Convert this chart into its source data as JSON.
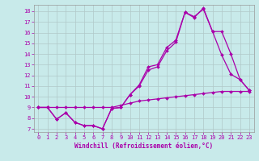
{
  "xlabel": "Windchill (Refroidissement éolien,°C)",
  "background_color": "#c8eaea",
  "line_color": "#aa00aa",
  "xlim": [
    -0.5,
    23.5
  ],
  "ylim": [
    6.7,
    18.6
  ],
  "xticks": [
    0,
    1,
    2,
    3,
    4,
    5,
    6,
    7,
    8,
    9,
    10,
    11,
    12,
    13,
    14,
    15,
    16,
    17,
    18,
    19,
    20,
    21,
    22,
    23
  ],
  "yticks": [
    7,
    8,
    9,
    10,
    11,
    12,
    13,
    14,
    15,
    16,
    17,
    18
  ],
  "line1_x": [
    0,
    1,
    2,
    3,
    4,
    5,
    6,
    7,
    8,
    9,
    10,
    11,
    12,
    13,
    14,
    15,
    16,
    17,
    18,
    19,
    20,
    21,
    22,
    23
  ],
  "line1_y": [
    9.0,
    9.0,
    9.0,
    9.0,
    9.0,
    9.0,
    9.0,
    9.0,
    9.0,
    9.2,
    9.4,
    9.6,
    9.7,
    9.8,
    9.9,
    10.0,
    10.1,
    10.2,
    10.3,
    10.4,
    10.5,
    10.5,
    10.5,
    10.5
  ],
  "line2_x": [
    0,
    1,
    2,
    3,
    4,
    5,
    6,
    7,
    8,
    9,
    10,
    11,
    12,
    13,
    14,
    15,
    16,
    17,
    18,
    19,
    20,
    21,
    22,
    23
  ],
  "line2_y": [
    9.0,
    9.0,
    7.9,
    8.5,
    7.6,
    7.3,
    7.3,
    7.0,
    8.9,
    9.0,
    10.2,
    11.1,
    12.8,
    13.0,
    14.6,
    15.3,
    17.9,
    17.5,
    18.2,
    16.1,
    13.9,
    12.1,
    11.6,
    10.6
  ],
  "line3_x": [
    0,
    1,
    2,
    3,
    4,
    5,
    6,
    7,
    8,
    9,
    10,
    11,
    12,
    13,
    14,
    15,
    16,
    17,
    18,
    19,
    20,
    21,
    22,
    23
  ],
  "line3_y": [
    9.0,
    9.0,
    7.9,
    8.5,
    7.6,
    7.3,
    7.3,
    7.0,
    8.9,
    9.0,
    10.2,
    11.0,
    12.5,
    12.8,
    14.3,
    15.1,
    17.9,
    17.4,
    18.3,
    16.1,
    16.1,
    14.0,
    11.6,
    10.6
  ],
  "grid_color": "#b0c8c8",
  "marker": "D",
  "markersize": 2,
  "linewidth": 0.9,
  "tick_fontsize": 5.0,
  "xlabel_fontsize": 5.5
}
